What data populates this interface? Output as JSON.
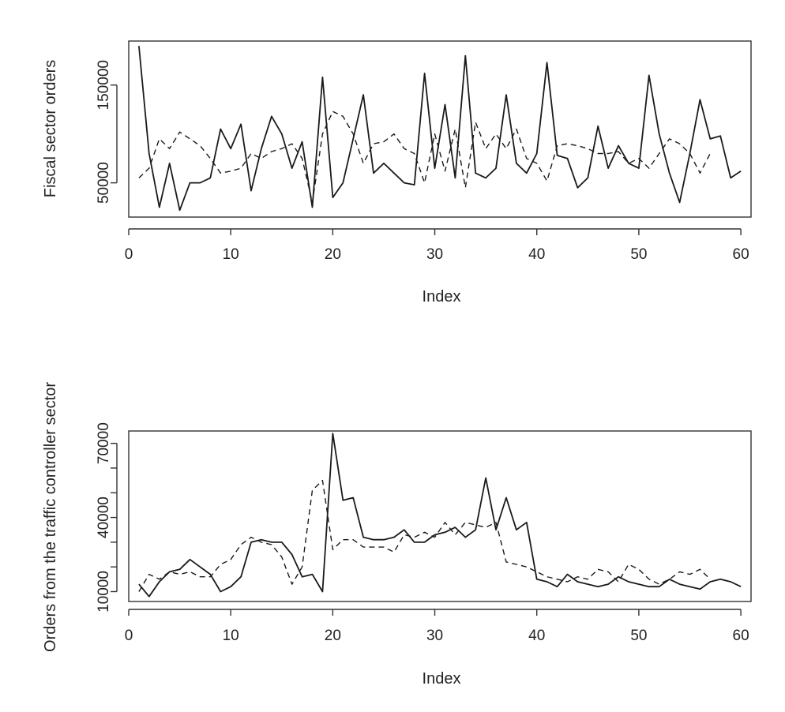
{
  "chart_data": [
    {
      "type": "line",
      "title": "",
      "xlabel": "Index",
      "ylabel": "Fiscal sector orders",
      "xlim": [
        0,
        61
      ],
      "ylim": [
        15000,
        195000
      ],
      "xticks": [
        0,
        10,
        20,
        30,
        40,
        50,
        60
      ],
      "xtick_labels": [
        "0",
        "10",
        "20",
        "30",
        "40",
        "50",
        "60"
      ],
      "yticks": [
        50000,
        150000
      ],
      "ytick_labels": [
        "50000",
        "150000"
      ],
      "grid": false,
      "legend": "none",
      "series": [
        {
          "style": "solid",
          "x": [
            1,
            2,
            3,
            4,
            5,
            6,
            7,
            8,
            9,
            10,
            11,
            12,
            13,
            14,
            15,
            16,
            17,
            18,
            19,
            20,
            21,
            22,
            23,
            24,
            25,
            26,
            27,
            28,
            29,
            30,
            31,
            32,
            33,
            34,
            35,
            36,
            37,
            38,
            39,
            40,
            41,
            42,
            43,
            44,
            45,
            46,
            47,
            48,
            49,
            50,
            51,
            52,
            53,
            54,
            55,
            56,
            57,
            58,
            59,
            60
          ],
          "y": [
            190000,
            80000,
            25000,
            70000,
            22000,
            50000,
            50000,
            55000,
            105000,
            85000,
            110000,
            42000,
            85000,
            118000,
            100000,
            65000,
            92000,
            25000,
            158000,
            35000,
            50000,
            95000,
            140000,
            60000,
            70000,
            60000,
            50000,
            48000,
            162000,
            65000,
            130000,
            55000,
            180000,
            60000,
            55000,
            65000,
            140000,
            70000,
            60000,
            80000,
            173000,
            78000,
            75000,
            45000,
            55000,
            108000,
            65000,
            88000,
            70000,
            65000,
            160000,
            100000,
            60000,
            30000,
            80000,
            135000,
            95000,
            98000,
            55000,
            62000
          ]
        },
        {
          "style": "dashed",
          "x": [
            1,
            2,
            3,
            4,
            5,
            6,
            7,
            8,
            9,
            10,
            11,
            12,
            13,
            14,
            15,
            16,
            17,
            18,
            19,
            20,
            21,
            22,
            23,
            24,
            25,
            26,
            27,
            28,
            29,
            30,
            31,
            32,
            33,
            34,
            35,
            36,
            37,
            38,
            39,
            40,
            41,
            42,
            43,
            44,
            45,
            46,
            47,
            48,
            49,
            50,
            51,
            52,
            53,
            54,
            55,
            56,
            57
          ],
          "y": [
            55000,
            65000,
            95000,
            85000,
            102000,
            95000,
            88000,
            75000,
            60000,
            62000,
            65000,
            80000,
            75000,
            82000,
            85000,
            90000,
            75000,
            30000,
            100000,
            123000,
            118000,
            100000,
            70000,
            90000,
            92000,
            100000,
            85000,
            80000,
            50000,
            100000,
            62000,
            105000,
            45000,
            112000,
            85000,
            100000,
            85000,
            105000,
            75000,
            70000,
            52000,
            88000,
            90000,
            88000,
            85000,
            80000,
            80000,
            82000,
            70000,
            75000,
            65000,
            80000,
            95000,
            90000,
            80000,
            60000,
            80000
          ]
        }
      ]
    },
    {
      "type": "line",
      "title": "",
      "xlabel": "Index",
      "ylabel": "Orders from the traffic controller sector",
      "xlim": [
        0,
        61
      ],
      "ylim": [
        6000,
        75000
      ],
      "xticks": [
        0,
        10,
        20,
        30,
        40,
        50,
        60
      ],
      "xtick_labels": [
        "0",
        "10",
        "20",
        "30",
        "40",
        "50",
        "60"
      ],
      "yticks": [
        10000,
        40000,
        70000
      ],
      "ytick_labels": [
        "10000",
        "40000",
        "70000"
      ],
      "extra_ytick_values": [
        20000,
        30000,
        50000,
        60000
      ],
      "grid": false,
      "legend": "none",
      "series": [
        {
          "style": "solid",
          "x": [
            1,
            2,
            3,
            4,
            5,
            6,
            7,
            8,
            9,
            10,
            11,
            12,
            13,
            14,
            15,
            16,
            17,
            18,
            19,
            20,
            21,
            22,
            23,
            24,
            25,
            26,
            27,
            28,
            29,
            30,
            31,
            32,
            33,
            34,
            35,
            36,
            37,
            38,
            39,
            40,
            41,
            42,
            43,
            44,
            45,
            46,
            47,
            48,
            49,
            50,
            51,
            52,
            53,
            54,
            55,
            56,
            57,
            58,
            59,
            60
          ],
          "y": [
            13000,
            8000,
            14000,
            18000,
            19000,
            23000,
            20000,
            17000,
            10000,
            12000,
            16000,
            30000,
            31000,
            30000,
            30000,
            25000,
            16000,
            17000,
            10000,
            74000,
            47000,
            48000,
            32000,
            31000,
            31000,
            32000,
            35000,
            30000,
            30000,
            33000,
            34000,
            36000,
            32000,
            35000,
            56000,
            35000,
            48000,
            35000,
            38000,
            15000,
            14000,
            12000,
            17000,
            14000,
            13000,
            12000,
            13000,
            16000,
            14000,
            13000,
            12000,
            12000,
            15000,
            13000,
            12000,
            11000,
            14000,
            15000,
            14000,
            12000
          ]
        },
        {
          "style": "dashed",
          "x": [
            1,
            2,
            3,
            4,
            5,
            6,
            7,
            8,
            9,
            10,
            11,
            12,
            13,
            14,
            15,
            16,
            17,
            18,
            19,
            20,
            21,
            22,
            23,
            24,
            25,
            26,
            27,
            28,
            29,
            30,
            31,
            32,
            33,
            34,
            35,
            36,
            37,
            38,
            39,
            40,
            41,
            42,
            43,
            44,
            45,
            46,
            47,
            48,
            49,
            50,
            51,
            52,
            53,
            54,
            55,
            56,
            57
          ],
          "y": [
            10000,
            17000,
            15000,
            18000,
            17000,
            18000,
            16000,
            16000,
            21000,
            23000,
            29000,
            32000,
            30000,
            29000,
            24000,
            13000,
            20000,
            51000,
            55000,
            27000,
            31000,
            31000,
            28000,
            28000,
            28000,
            26000,
            33000,
            32000,
            34000,
            32000,
            38000,
            33000,
            38000,
            37000,
            36000,
            38000,
            22000,
            21000,
            20000,
            18000,
            16000,
            15000,
            14000,
            16000,
            15000,
            19000,
            18000,
            14000,
            21000,
            19000,
            15000,
            13000,
            15000,
            18000,
            17000,
            19000,
            15000
          ]
        }
      ]
    }
  ]
}
